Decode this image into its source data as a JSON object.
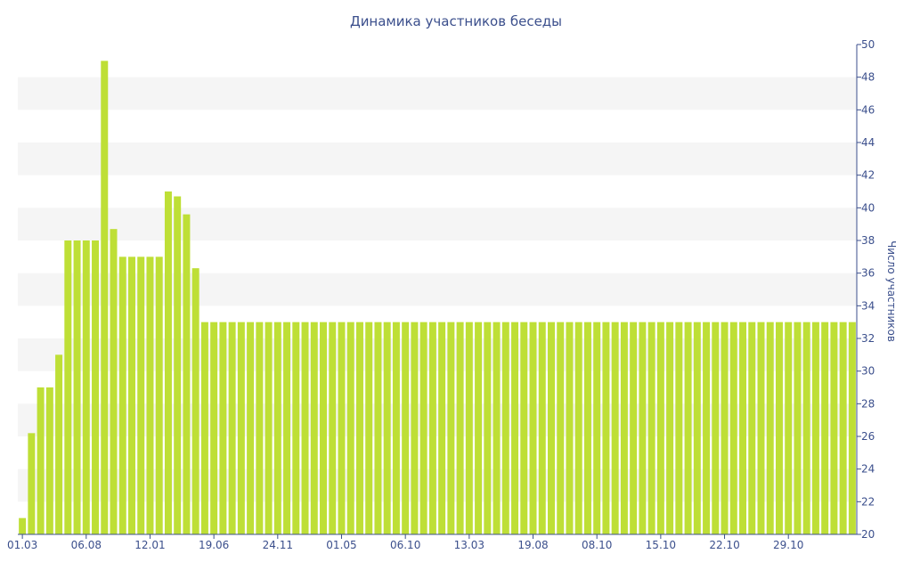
{
  "chart_data": {
    "type": "bar",
    "title": "Динамика участников беседы",
    "xlabel": "",
    "ylabel": "Число участников",
    "ylim": [
      20,
      50
    ],
    "y_ticks": [
      20,
      22,
      24,
      26,
      28,
      30,
      32,
      34,
      36,
      38,
      40,
      42,
      44,
      46,
      48,
      50
    ],
    "y_axis_side": "right",
    "x_tick_labels": [
      {
        "label": "01.03",
        "index": 0
      },
      {
        "label": "06.08",
        "index": 7
      },
      {
        "label": "12.01",
        "index": 14
      },
      {
        "label": "19.06",
        "index": 21
      },
      {
        "label": "24.11",
        "index": 28
      },
      {
        "label": "01.05",
        "index": 35
      },
      {
        "label": "06.10",
        "index": 42
      },
      {
        "label": "13.03",
        "index": 49
      },
      {
        "label": "19.08",
        "index": 56
      },
      {
        "label": "08.10",
        "index": 63
      },
      {
        "label": "15.10",
        "index": 70
      },
      {
        "label": "22.10",
        "index": 77
      },
      {
        "label": "29.10",
        "index": 84
      }
    ],
    "values": [
      21,
      26.2,
      29,
      29,
      31,
      38,
      38,
      38,
      38,
      49,
      38.7,
      37,
      37,
      37,
      37,
      37,
      41,
      40.7,
      39.6,
      36.3,
      33,
      33,
      33,
      33,
      33,
      33,
      33,
      33,
      33,
      33,
      33,
      33,
      33,
      33,
      33,
      33,
      33,
      33,
      33,
      33,
      33,
      33,
      33,
      33,
      33,
      33,
      33,
      33,
      33,
      33,
      33,
      33,
      33,
      33,
      33,
      33,
      33,
      33,
      33,
      33,
      33,
      33,
      33,
      33,
      33,
      33,
      33,
      33,
      33,
      33,
      33,
      33,
      33,
      33,
      33,
      33,
      33,
      33,
      33,
      33,
      33,
      33,
      33,
      33,
      33,
      33,
      33,
      33,
      33,
      33,
      33,
      33
    ],
    "bar_color": "#bedf36",
    "band_color": "#f5f5f5",
    "text_color": "#3b4f8c",
    "grid": "alternating bands",
    "legend": "none"
  }
}
